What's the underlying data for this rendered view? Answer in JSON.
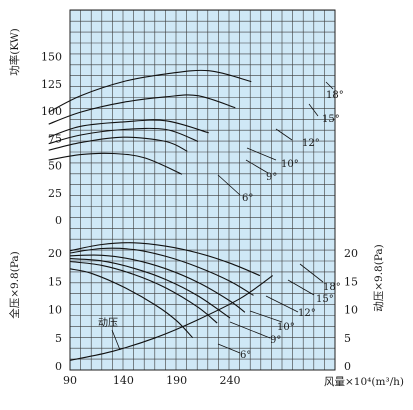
{
  "chart_data": [
    {
      "type": "line",
      "panel": "power",
      "ylabel": "功率(KW)",
      "ylim": [
        0,
        175
      ],
      "yticks": [
        0,
        25,
        50,
        75,
        100,
        125,
        150
      ],
      "grid": true,
      "series": [
        {
          "name": "18°",
          "x": [
            70,
            100,
            140,
            180,
            220,
            260
          ],
          "y": [
            99,
            114,
            127,
            134,
            137,
            127
          ]
        },
        {
          "name": "15°",
          "x": [
            70,
            100,
            140,
            180,
            210,
            245
          ],
          "y": [
            88,
            99,
            108,
            113,
            114,
            103
          ]
        },
        {
          "name": "12°",
          "x": [
            70,
            100,
            140,
            180,
            220
          ],
          "y": [
            76,
            86,
            90,
            91,
            80
          ]
        },
        {
          "name": "10°",
          "x": [
            70,
            100,
            140,
            180,
            210
          ],
          "y": [
            70,
            78,
            83,
            83,
            72
          ]
        },
        {
          "name": "9°",
          "x": [
            70,
            100,
            140,
            180,
            200
          ],
          "y": [
            64,
            71,
            76,
            72,
            63
          ]
        },
        {
          "name": "6°",
          "x": [
            70,
            100,
            130,
            160,
            195
          ],
          "y": [
            55,
            60,
            61,
            57,
            42
          ]
        }
      ]
    },
    {
      "type": "line",
      "panel": "pressure",
      "ylabel": "全压×9.8(Pa)",
      "ylabel_right": "动压×9.8(Pa)",
      "xlabel": "风量×10⁴(m³/h)",
      "xlim": [
        90,
        280
      ],
      "xticks": [
        90,
        140,
        190,
        240
      ],
      "ylim": [
        0,
        22
      ],
      "yticks": [
        0,
        5,
        10,
        15,
        20
      ],
      "grid": true,
      "series": [
        {
          "name": "18°",
          "x": [
            90,
            120,
            150,
            180,
            210,
            240,
            268
          ],
          "y": [
            20.4,
            21.5,
            21.8,
            21.2,
            20.0,
            18.2,
            16.0
          ]
        },
        {
          "name": "15°",
          "x": [
            90,
            120,
            150,
            180,
            210,
            240,
            262
          ],
          "y": [
            20.0,
            20.8,
            20.6,
            19.4,
            17.5,
            15.0,
            12.5
          ]
        },
        {
          "name": "12°",
          "x": [
            90,
            120,
            150,
            180,
            210,
            240,
            254
          ],
          "y": [
            19.5,
            19.6,
            18.8,
            17.2,
            14.8,
            11.5,
            9.5
          ]
        },
        {
          "name": "10°",
          "x": [
            90,
            120,
            150,
            180,
            210,
            240
          ],
          "y": [
            19.0,
            18.6,
            17.3,
            15.3,
            12.4,
            8.5
          ]
        },
        {
          "name": "9°",
          "x": [
            90,
            120,
            150,
            180,
            210,
            228
          ],
          "y": [
            18.5,
            17.8,
            16.2,
            13.8,
            10.4,
            7.6
          ]
        },
        {
          "name": "6°",
          "x": [
            90,
            110,
            140,
            170,
            190,
            205
          ],
          "y": [
            17.2,
            16.4,
            14.0,
            10.8,
            8.0,
            5.0
          ]
        },
        {
          "name": "动压",
          "x": [
            90,
            130,
            170,
            210,
            250,
            280
          ],
          "y": [
            1.0,
            2.6,
            5.0,
            8.2,
            12.0,
            16.0
          ]
        }
      ]
    }
  ],
  "labels": {
    "s18": "18°",
    "s15": "15°",
    "s12": "12°",
    "s10": "10°",
    "s9": "9°",
    "s6": "6°",
    "dyn": "动压"
  }
}
